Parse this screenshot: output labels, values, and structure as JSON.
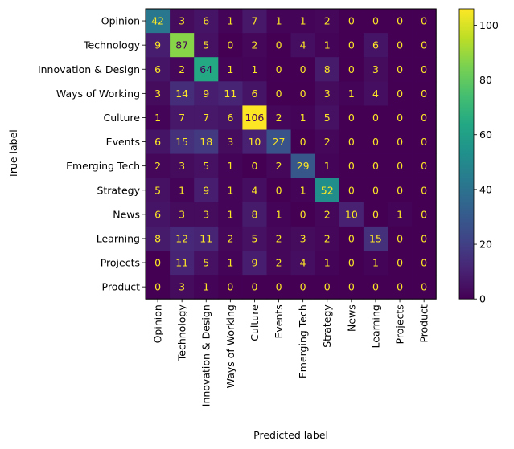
{
  "chart_data": {
    "type": "heatmap",
    "title": "",
    "xlabel": "Predicted label",
    "ylabel": "True label",
    "categories": [
      "Opinion",
      "Technology",
      "Innovation & Design",
      "Ways of Working",
      "Culture",
      "Events",
      "Emerging Tech",
      "Strategy",
      "News",
      "Learning",
      "Projects",
      "Product"
    ],
    "matrix": [
      [
        42,
        3,
        6,
        1,
        7,
        1,
        1,
        2,
        0,
        0,
        0,
        0
      ],
      [
        9,
        87,
        5,
        0,
        2,
        0,
        4,
        1,
        0,
        6,
        0,
        0
      ],
      [
        6,
        2,
        64,
        1,
        1,
        0,
        0,
        8,
        0,
        3,
        0,
        0
      ],
      [
        3,
        14,
        9,
        11,
        6,
        0,
        0,
        3,
        1,
        4,
        0,
        0
      ],
      [
        1,
        7,
        7,
        6,
        106,
        2,
        1,
        5,
        0,
        0,
        0,
        0
      ],
      [
        6,
        15,
        18,
        3,
        10,
        27,
        0,
        2,
        0,
        0,
        0,
        0
      ],
      [
        2,
        3,
        5,
        1,
        0,
        2,
        29,
        1,
        0,
        0,
        0,
        0
      ],
      [
        5,
        1,
        9,
        1,
        4,
        0,
        1,
        52,
        0,
        0,
        0,
        0
      ],
      [
        6,
        3,
        3,
        1,
        8,
        1,
        0,
        2,
        10,
        0,
        1,
        0
      ],
      [
        8,
        12,
        11,
        2,
        5,
        2,
        3,
        2,
        0,
        15,
        0,
        0
      ],
      [
        0,
        11,
        5,
        1,
        9,
        2,
        4,
        1,
        0,
        1,
        0,
        0
      ],
      [
        0,
        3,
        1,
        0,
        0,
        0,
        0,
        0,
        0,
        0,
        0,
        0
      ]
    ],
    "colorbar": {
      "colormap": "viridis",
      "range": [
        0,
        106
      ],
      "ticks": [
        0,
        20,
        40,
        60,
        80,
        100
      ]
    },
    "text_colors": {
      "light": "#fde725",
      "dark": "#440154"
    },
    "text_threshold": 53
  }
}
